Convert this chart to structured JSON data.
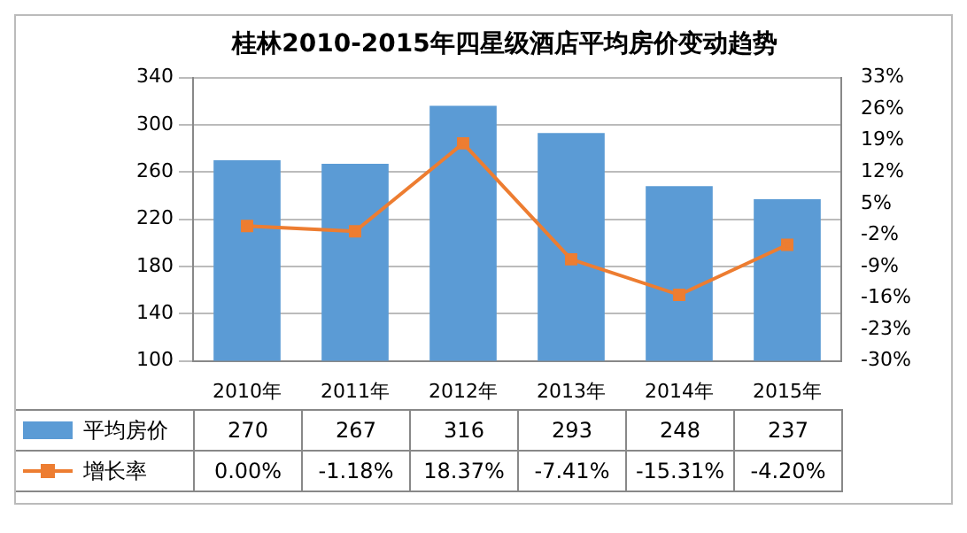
{
  "chart_data": {
    "type": "bar",
    "title": "桂林2010-2015年四星级酒店平均房价变动趋势",
    "categories": [
      "2010年",
      "2011年",
      "2012年",
      "2013年",
      "2014年",
      "2015年"
    ],
    "series": [
      {
        "name": "平均房价",
        "color": "#5b9bd5",
        "values": [
          270,
          267,
          316,
          293,
          248,
          237
        ],
        "value_labels": [
          "270",
          "267",
          "316",
          "293",
          "248",
          "237"
        ]
      },
      {
        "name": "增长率",
        "type": "line",
        "axis": "y2",
        "color": "#ed7d31",
        "marker": "square",
        "values": [
          0,
          -1.18,
          18.37,
          -7.41,
          -15.31,
          -4.2
        ],
        "value_labels": [
          "0.00%",
          "-1.18%",
          "18.37%",
          "-7.41%",
          "-15.31%",
          "-4.20%"
        ]
      }
    ],
    "ylim": [
      100,
      340
    ],
    "yticks": [
      100,
      140,
      180,
      220,
      260,
      300,
      340
    ],
    "y2lim": [
      -30,
      33
    ],
    "y2ticks": [
      {
        "value": -30,
        "label": "-30%"
      },
      {
        "value": -23,
        "label": "-23%"
      },
      {
        "value": -16,
        "label": "-16%"
      },
      {
        "value": -9,
        "label": "-9%"
      },
      {
        "value": -2,
        "label": "-2%"
      },
      {
        "value": 5,
        "label": "5%"
      },
      {
        "value": 12,
        "label": "12%"
      },
      {
        "value": 19,
        "label": "19%"
      },
      {
        "value": 26,
        "label": "26%"
      },
      {
        "value": 33,
        "label": "33%"
      }
    ],
    "grid": "y",
    "legend": "bottom"
  }
}
